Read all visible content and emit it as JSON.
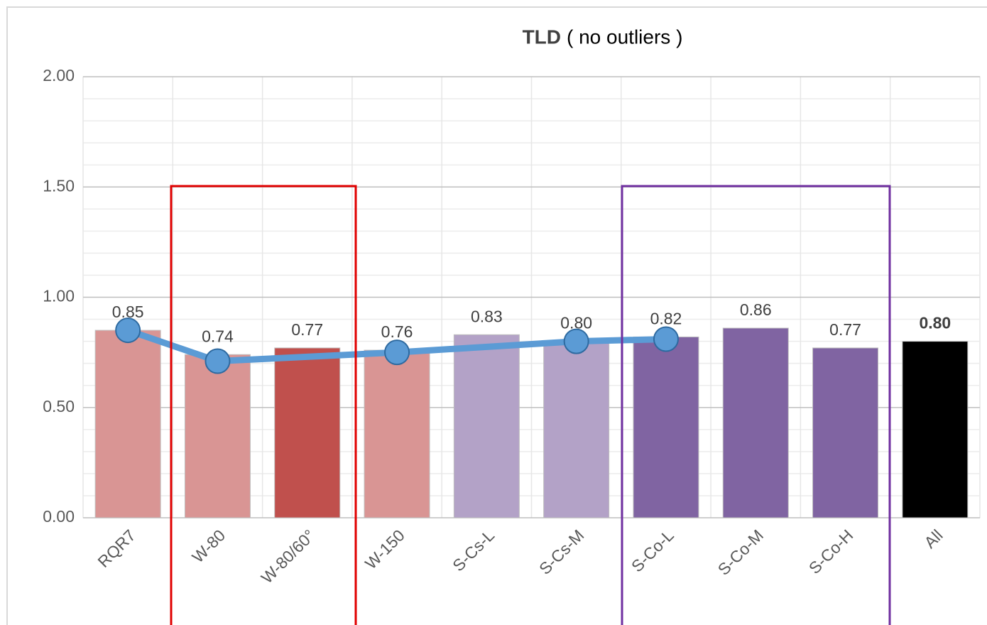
{
  "chart_data": {
    "type": "bar",
    "title": {
      "bold": "TLD",
      "text": "( no outliers )"
    },
    "categories": [
      "RQR7",
      "W-80",
      "W-80/60°",
      "W-150",
      "S-Cs-L",
      "S-Cs-M",
      "S-Co-L",
      "S-Co-M",
      "S-Co-H",
      "All"
    ],
    "values": [
      0.85,
      0.74,
      0.77,
      0.76,
      0.83,
      0.8,
      0.82,
      0.86,
      0.77,
      0.8
    ],
    "value_labels": [
      "0.85",
      "0.74",
      "0.77",
      "0.76",
      "0.83",
      "0.80",
      "0.82",
      "0.86",
      "0.77",
      "0.80"
    ],
    "bold_value_labels": [
      9
    ],
    "colors": [
      "#d99594",
      "#d99594",
      "#c0504d",
      "#d99594",
      "#b3a2c7",
      "#b3a2c7",
      "#8064a2",
      "#8064a2",
      "#8064a2",
      "#000000"
    ],
    "line": {
      "type": "line",
      "color": "#5b9bd5",
      "marker_color": "#5b9bd5",
      "categories": [
        "RQR7",
        "W-80",
        "W-150",
        "S-Cs-M",
        "S-Co-L"
      ],
      "values": [
        0.85,
        0.71,
        0.75,
        0.8,
        0.81
      ]
    },
    "ylim": [
      0,
      2
    ],
    "yticks": [
      {
        "value": 0,
        "label": "0.00"
      },
      {
        "value": 0.5,
        "label": "0.50"
      },
      {
        "value": 1,
        "label": "1.00"
      },
      {
        "value": 1.5,
        "label": "1.50"
      },
      {
        "value": 2,
        "label": "2.00"
      }
    ],
    "minor_yticks": [
      0.1,
      0.2,
      0.3,
      0.4,
      0.6,
      0.7,
      0.8,
      0.9,
      1.1,
      1.2,
      1.3,
      1.4,
      1.6,
      1.7,
      1.8,
      1.9
    ],
    "grid": true
  }
}
